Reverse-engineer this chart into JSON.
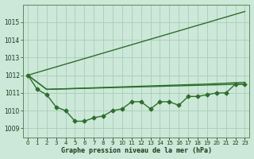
{
  "bg_color": "#cce8d8",
  "grid_color": "#aaccb8",
  "line_color": "#2d6e2d",
  "title": "Graphe pression niveau de la mer (hPa)",
  "xlim": [
    -0.5,
    23.5
  ],
  "ylim": [
    1008.5,
    1016.0
  ],
  "yticks": [
    1009,
    1010,
    1011,
    1012,
    1013,
    1014,
    1015
  ],
  "series": [
    {
      "x": [
        0,
        1,
        2,
        3,
        4,
        5,
        6,
        7,
        8,
        9,
        10,
        11,
        12,
        13,
        14,
        15,
        16,
        17,
        18,
        19,
        20,
        21,
        22,
        23
      ],
      "y": [
        1012.0,
        1011.2,
        1010.9,
        1010.2,
        1010.0,
        1009.4,
        1009.4,
        1009.6,
        1009.7,
        1010.0,
        1010.1,
        1010.5,
        1010.5,
        1010.1,
        1010.5,
        1010.5,
        1010.3,
        1010.8,
        1010.8,
        1010.9,
        1011.0,
        1011.0,
        1011.5,
        1011.5
      ],
      "marker": "D",
      "markersize": 2.5,
      "linewidth": 1.0
    },
    {
      "x": [
        0,
        23
      ],
      "y": [
        1012.0,
        1015.6
      ],
      "marker": null,
      "markersize": 0,
      "linewidth": 1.0
    },
    {
      "x": [
        0,
        2,
        23
      ],
      "y": [
        1012.0,
        1011.2,
        1011.5
      ],
      "marker": null,
      "markersize": 0,
      "linewidth": 1.0
    },
    {
      "x": [
        0,
        2,
        19,
        23
      ],
      "y": [
        1012.0,
        1011.2,
        1011.5,
        1011.6
      ],
      "marker": null,
      "markersize": 0,
      "linewidth": 1.0
    }
  ],
  "xlabel_fontsize": 6.0,
  "ytick_fontsize": 5.5,
  "xtick_fontsize": 5.0
}
